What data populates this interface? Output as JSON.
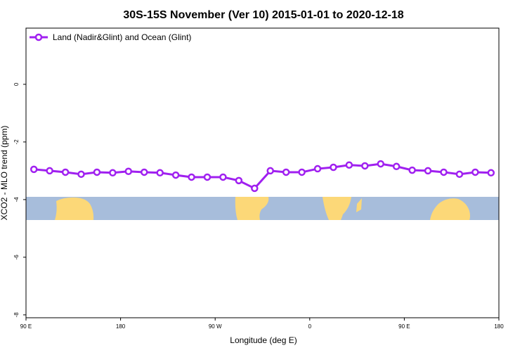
{
  "chart_data": {
    "type": "line",
    "title": "30S-15S November (Ver 10)   2015-01-01 to 2020-12-18",
    "x_label": "Longitude (deg E)",
    "y_label": "XCO2 - MLO trend (ppm)",
    "x": [
      97.5,
      112.5,
      127.5,
      142.5,
      157.5,
      172.5,
      187.5,
      202.5,
      217.5,
      232.5,
      247.5,
      262.5,
      277.5,
      292.5,
      307.5,
      322.5,
      337.5,
      352.5,
      367.5,
      382.5,
      397.5,
      412.5,
      427.5,
      442.5,
      457.5,
      472.5,
      487.5,
      502.5,
      517.5,
      532.5
    ],
    "series": [
      {
        "name": "Land (Nadir&Glint) and Ocean (Glint)",
        "color": "#a020f0",
        "values": [
          -2.95,
          -3.0,
          -3.05,
          -3.12,
          -3.05,
          -3.07,
          -3.02,
          -3.05,
          -3.07,
          -3.15,
          -3.22,
          -3.22,
          -3.22,
          -3.34,
          -3.61,
          -3.0,
          -3.05,
          -3.05,
          -2.93,
          -2.88,
          -2.8,
          -2.83,
          -2.76,
          -2.85,
          -2.98,
          -3.0,
          -3.05,
          -3.12,
          -3.05,
          -3.07
        ]
      }
    ],
    "xlim": [
      90,
      540
    ],
    "xticks": [
      {
        "value": 90,
        "label": "90 E"
      },
      180,
      {
        "value": 270,
        "label": "90 W"
      },
      {
        "value": 360,
        "label": "0"
      },
      {
        "value": 450,
        "label": "90 E"
      },
      {
        "value": 540,
        "label": "180"
      }
    ],
    "ylim": [
      -8.1,
      1.95
    ],
    "yticks": [
      -8,
      -6,
      -4,
      -2,
      0
    ],
    "legend": "top-left"
  }
}
